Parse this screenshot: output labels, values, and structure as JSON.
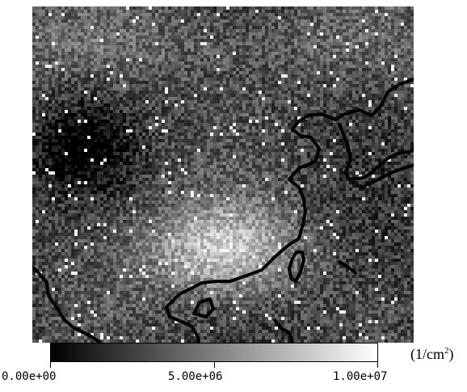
{
  "chart_data": {
    "type": "heatmap",
    "colormap": [
      "#000000",
      "#ffffff"
    ],
    "colorbar": {
      "min": 0,
      "max": 10000000,
      "tick_labels": [
        "0.00e+00",
        "5.00e+06",
        "1.00e+07"
      ],
      "unit_prefix": "(1/cm",
      "unit_exponent": "2",
      "unit_suffix": ")"
    },
    "features": [
      {
        "name": "bright region",
        "intensity": 8500000
      },
      {
        "name": "dark region",
        "intensity": 1000000
      }
    ],
    "overlay": "coastline contours",
    "overlay_color": "#000000"
  }
}
